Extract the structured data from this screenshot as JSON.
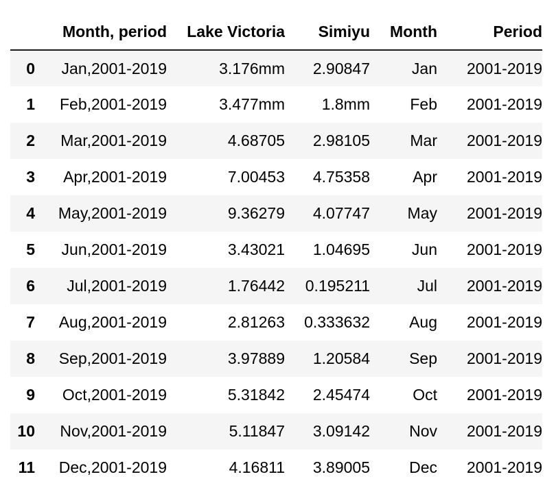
{
  "table": {
    "columns": [
      "",
      "Month, period",
      "Lake Victoria",
      "Simiyu",
      "Month",
      "Period"
    ],
    "rows": [
      {
        "index": "0",
        "month_period": "Jan,2001-2019",
        "lake_victoria": "3.176mm",
        "simiyu": "2.90847",
        "month": "Jan",
        "period": "2001-2019"
      },
      {
        "index": "1",
        "month_period": "Feb,2001-2019",
        "lake_victoria": "3.477mm",
        "simiyu": "1.8mm",
        "month": "Feb",
        "period": "2001-2019"
      },
      {
        "index": "2",
        "month_period": "Mar,2001-2019",
        "lake_victoria": "4.68705",
        "simiyu": "2.98105",
        "month": "Mar",
        "period": "2001-2019"
      },
      {
        "index": "3",
        "month_period": "Apr,2001-2019",
        "lake_victoria": "7.00453",
        "simiyu": "4.75358",
        "month": "Apr",
        "period": "2001-2019"
      },
      {
        "index": "4",
        "month_period": "May,2001-2019",
        "lake_victoria": "9.36279",
        "simiyu": "4.07747",
        "month": "May",
        "period": "2001-2019"
      },
      {
        "index": "5",
        "month_period": "Jun,2001-2019",
        "lake_victoria": "3.43021",
        "simiyu": "1.04695",
        "month": "Jun",
        "period": "2001-2019"
      },
      {
        "index": "6",
        "month_period": "Jul,2001-2019",
        "lake_victoria": "1.76442",
        "simiyu": "0.195211",
        "month": "Jul",
        "period": "2001-2019"
      },
      {
        "index": "7",
        "month_period": "Aug,2001-2019",
        "lake_victoria": "2.81263",
        "simiyu": "0.333632",
        "month": "Aug",
        "period": "2001-2019"
      },
      {
        "index": "8",
        "month_period": "Sep,2001-2019",
        "lake_victoria": "3.97889",
        "simiyu": "1.20584",
        "month": "Sep",
        "period": "2001-2019"
      },
      {
        "index": "9",
        "month_period": "Oct,2001-2019",
        "lake_victoria": "5.31842",
        "simiyu": "2.45474",
        "month": "Oct",
        "period": "2001-2019"
      },
      {
        "index": "10",
        "month_period": "Nov,2001-2019",
        "lake_victoria": "5.11847",
        "simiyu": "3.09142",
        "month": "Nov",
        "period": "2001-2019"
      },
      {
        "index": "11",
        "month_period": "Dec,2001-2019",
        "lake_victoria": "4.16811",
        "simiyu": "3.89005",
        "month": "Dec",
        "period": "2001-2019"
      }
    ]
  }
}
